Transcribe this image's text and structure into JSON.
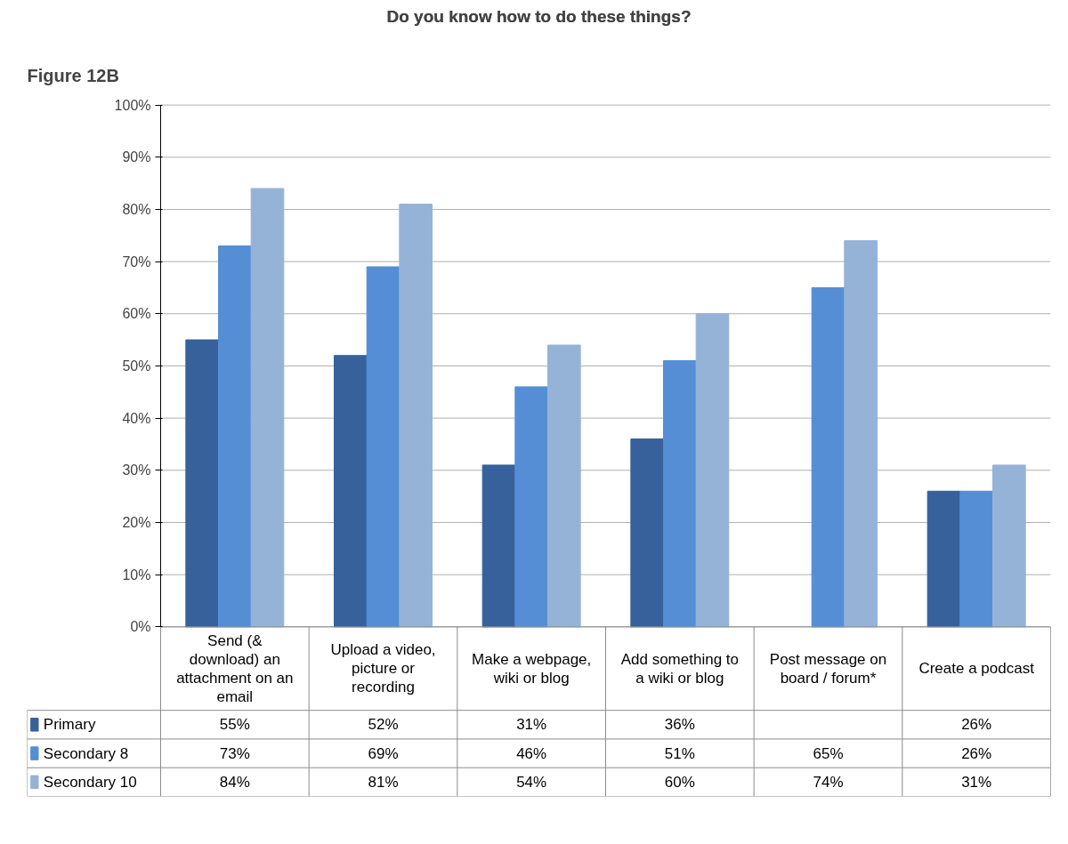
{
  "chart_data": {
    "type": "bar",
    "title": "Do you know how to do these things?",
    "annotations": [
      "Figure 12B"
    ],
    "categories": [
      "Send (& download) an attachment on an email",
      "Upload a video, picture or recording",
      "Make a webpage, wiki or blog",
      "Add something to a wiki or blog",
      "Post message on board / forum*",
      "Create a podcast"
    ],
    "series": [
      {
        "name": "Primary",
        "color": "#36619a",
        "values": [
          55,
          52,
          31,
          36,
          null,
          26
        ],
        "value_labels": [
          "55%",
          "52%",
          "31%",
          "36%",
          null,
          "26%"
        ]
      },
      {
        "name": "Secondary 8",
        "color": "#558ed5",
        "values": [
          73,
          69,
          46,
          51,
          65,
          26
        ],
        "value_labels": [
          "73%",
          "69%",
          "46%",
          "51%",
          "65%",
          "26%"
        ]
      },
      {
        "name": "Secondary 10",
        "color": "#95b3d7",
        "values": [
          84,
          81,
          54,
          60,
          74,
          31
        ],
        "value_labels": [
          "84%",
          "81%",
          "54%",
          "60%",
          "74%",
          "31%"
        ]
      }
    ],
    "ylim": [
      0,
      100
    ],
    "yticks": [
      {
        "value": 0,
        "label": "0%"
      },
      {
        "value": 10,
        "label": "10%"
      },
      {
        "value": 20,
        "label": "20%"
      },
      {
        "value": 30,
        "label": "30%"
      },
      {
        "value": 40,
        "label": "40%"
      },
      {
        "value": 50,
        "label": "50%"
      },
      {
        "value": 60,
        "label": "60%"
      },
      {
        "value": 70,
        "label": "70%"
      },
      {
        "value": 80,
        "label": "80%"
      },
      {
        "value": 90,
        "label": "90%"
      },
      {
        "value": 100,
        "label": "100%"
      }
    ],
    "grid": "y",
    "legend": "bottom"
  }
}
